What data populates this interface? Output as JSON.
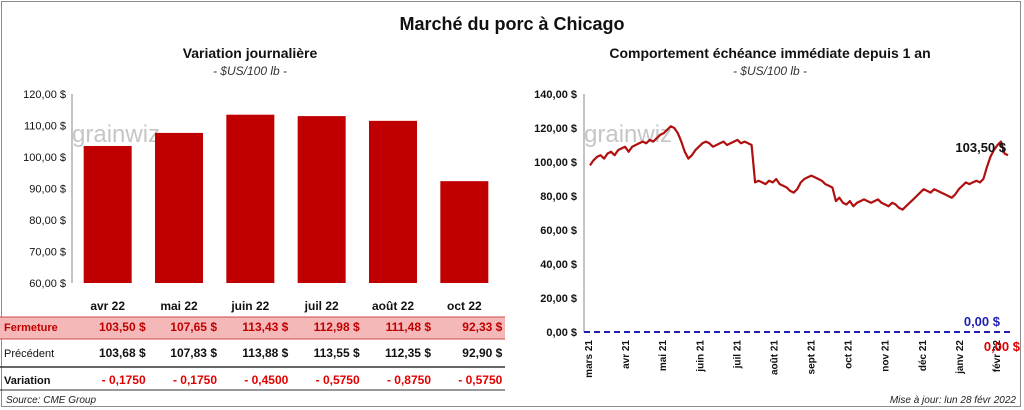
{
  "title": "Marché du porc à Chicago",
  "left": {
    "subtitle": "Variation journalière",
    "unit": "- $US/100 lb -"
  },
  "right": {
    "subtitle": "Comportement échéance immédiate depuis 1 an",
    "unit": "- $US/100 lb -"
  },
  "source": "Source: CME Group",
  "updated": "Mise à jour: lun 28 févr 2022",
  "watermark": "grainwiz",
  "colors": {
    "bar": "#c00000",
    "line": "#b01010",
    "zero": "#1f1fb4",
    "row_highlight": "#f4b8b8",
    "negative": "#e00000"
  },
  "chart_data": [
    {
      "type": "bar",
      "categories": [
        "avr 22",
        "mai 22",
        "juin 22",
        "juil 22",
        "août 22",
        "oct 22"
      ],
      "values": [
        103.5,
        107.65,
        113.43,
        112.98,
        111.48,
        92.33
      ],
      "ylim": [
        60,
        120
      ],
      "yticks": [
        "120,00 $",
        "110,00 $",
        "100,00 $",
        "90,00 $",
        "80,00 $",
        "70,00 $",
        "60,00 $"
      ],
      "grid": false,
      "table": {
        "rows": [
          {
            "label": "Fermeture",
            "values": [
              "103,50 $",
              "107,65 $",
              "113,43 $",
              "112,98 $",
              "111,48 $",
              "92,33 $"
            ]
          },
          {
            "label": "Précédent",
            "values": [
              "103,68 $",
              "107,83 $",
              "113,88 $",
              "113,55 $",
              "112,35 $",
              "92,90 $"
            ]
          },
          {
            "label": "Variation",
            "values": [
              "- 0,1750",
              "- 0,1750",
              "- 0,4500",
              "- 0,5750",
              "- 0,8750",
              "- 0,5750"
            ]
          }
        ]
      }
    },
    {
      "type": "line",
      "x_labels": [
        "mars 21",
        "avr 21",
        "mai 21",
        "juin 21",
        "juil 21",
        "août 21",
        "sept 21",
        "oct 21",
        "nov 21",
        "déc 21",
        "janv 22",
        "févr 22"
      ],
      "ylim": [
        0,
        140
      ],
      "yticks": [
        "140,00 $",
        "120,00 $",
        "100,00 $",
        "80,00 $",
        "60,00 $",
        "40,00 $",
        "20,00 $",
        "0,00 $"
      ],
      "series": [
        {
          "values": [
            98,
            101,
            103,
            104,
            102,
            105,
            106,
            104,
            107,
            108,
            109,
            106,
            109,
            110,
            111,
            112,
            111,
            113,
            112,
            114,
            116,
            117,
            119,
            121,
            120,
            117,
            112,
            106,
            102,
            104,
            107,
            109,
            111,
            112,
            111,
            109,
            110,
            111,
            112,
            110,
            111,
            112,
            113,
            111,
            112,
            111,
            110,
            88,
            89,
            88,
            87,
            89,
            88,
            90,
            87,
            86,
            85,
            83,
            82,
            84,
            88,
            90,
            91,
            92,
            91,
            90,
            89,
            87,
            86,
            85,
            77,
            79,
            76,
            75,
            77,
            74,
            76,
            77,
            78,
            77,
            76,
            77,
            78,
            76,
            75,
            74,
            76,
            75,
            73,
            72,
            74,
            76,
            78,
            80,
            82,
            84,
            83,
            82,
            84,
            83,
            82,
            81,
            80,
            79,
            81,
            84,
            86,
            88,
            87,
            88,
            89,
            88,
            90,
            97,
            103,
            107,
            110,
            112,
            105,
            104
          ]
        }
      ],
      "last_label": "103,50 $",
      "zero_labels": [
        "0,00 $",
        "0,00 $"
      ],
      "grid": false
    }
  ]
}
